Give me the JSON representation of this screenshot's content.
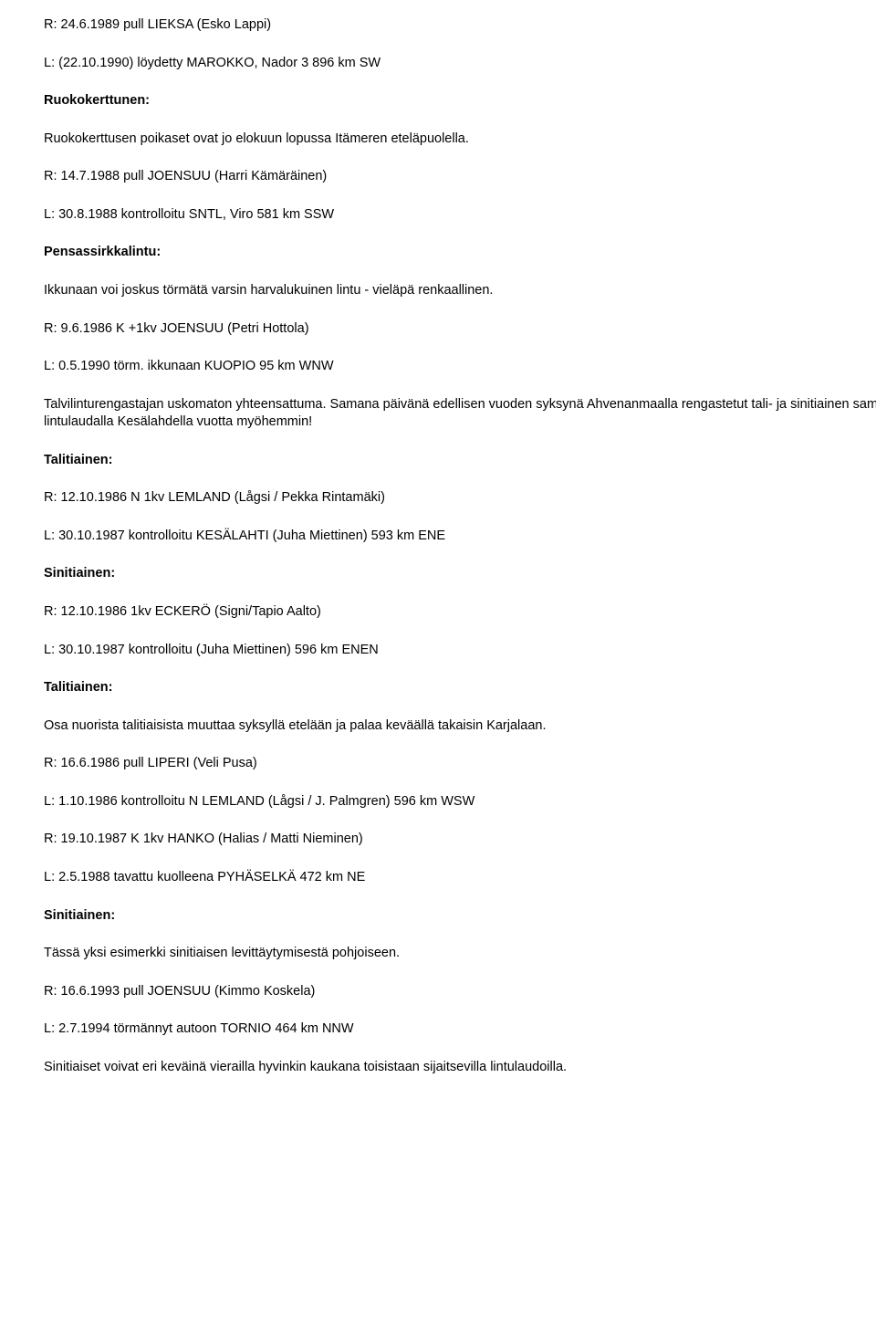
{
  "lines": [
    {
      "text": "R: 24.6.1989 pull LIEKSA (Esko Lappi)",
      "bold": false
    },
    {
      "text": "L: (22.10.1990) löydetty MAROKKO, Nador 3 896 km SW",
      "bold": false
    },
    {
      "text": "Ruokokerttunen:",
      "bold": true
    },
    {
      "text": "Ruokokerttusen poikaset ovat jo elokuun lopussa Itämeren eteläpuolella.",
      "bold": false
    },
    {
      "text": "R: 14.7.1988 pull JOENSUU (Harri Kämäräinen)",
      "bold": false
    },
    {
      "text": "L: 30.8.1988 kontrolloitu SNTL, Viro 581 km SSW",
      "bold": false
    },
    {
      "text": "Pensassirkkalintu:",
      "bold": true
    },
    {
      "text": "Ikkunaan voi joskus törmätä varsin harvalukuinen lintu - vieläpä renkaallinen.",
      "bold": false
    },
    {
      "text": "R: 9.6.1986 K +1kv JOENSUU (Petri Hottola)",
      "bold": false
    },
    {
      "text": "L: 0.5.1990 törm. ikkunaan KUOPIO 95 km WNW",
      "bold": false
    },
    {
      "text": "Talvilinturengastajan uskomaton yhteensattuma. Samana päivänä edellisen vuoden syksynä Ahvenanmaalla rengastetut tali- ja sinitiainen samalla lintulaudalla Kesälahdella vuotta myöhemmin!",
      "bold": false
    },
    {
      "text": "Talitiainen:",
      "bold": true
    },
    {
      "text": "R: 12.10.1986 N 1kv LEMLAND (Lågsi / Pekka Rintamäki)",
      "bold": false
    },
    {
      "text": "L: 30.10.1987 kontrolloitu KESÄLAHTI (Juha Miettinen) 593 km ENE",
      "bold": false
    },
    {
      "text": "Sinitiainen:",
      "bold": true
    },
    {
      "text": "R: 12.10.1986 1kv ECKERÖ (Signi/Tapio Aalto)",
      "bold": false
    },
    {
      "text": "L: 30.10.1987 kontrolloitu (Juha Miettinen) 596 km ENEN",
      "bold": false
    },
    {
      "text": "Talitiainen:",
      "bold": true
    },
    {
      "text": "Osa nuorista talitiaisista muuttaa syksyllä etelään ja palaa keväällä takaisin Karjalaan.",
      "bold": false
    },
    {
      "text": "R: 16.6.1986 pull LIPERI (Veli Pusa)",
      "bold": false
    },
    {
      "text": "L: 1.10.1986 kontrolloitu N LEMLAND (Lågsi / J. Palmgren) 596 km WSW",
      "bold": false
    },
    {
      "text": "R: 19.10.1987 K 1kv HANKO (Halias / Matti Nieminen)",
      "bold": false
    },
    {
      "text": "L: 2.5.1988 tavattu kuolleena PYHÄSELKÄ 472 km NE",
      "bold": false
    },
    {
      "text": "Sinitiainen:",
      "bold": true
    },
    {
      "text": "Tässä yksi esimerkki sinitiaisen levittäytymisestä pohjoiseen.",
      "bold": false
    },
    {
      "text": "R: 16.6.1993 pull JOENSUU (Kimmo Koskela)",
      "bold": false
    },
    {
      "text": "L: 2.7.1994 törmännyt autoon TORNIO 464 km NNW",
      "bold": false
    },
    {
      "text": "Sinitiaiset voivat eri keväinä vierailla hyvinkin kaukana toisistaan sijaitsevilla lintulaudoilla.",
      "bold": false
    }
  ]
}
